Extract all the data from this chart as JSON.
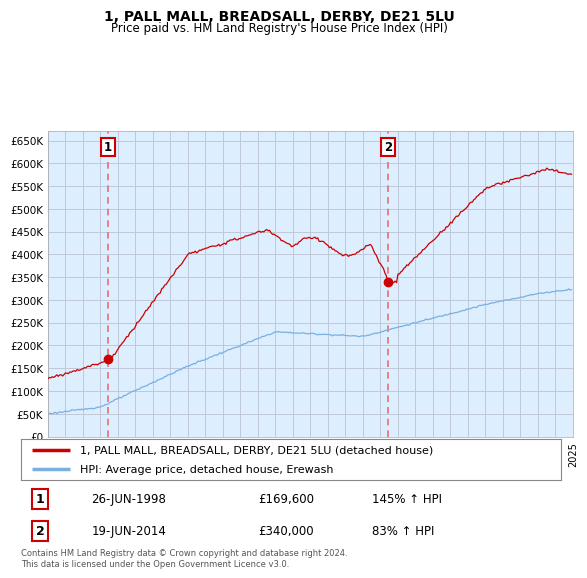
{
  "title": "1, PALL MALL, BREADSALL, DERBY, DE21 5LU",
  "subtitle": "Price paid vs. HM Land Registry's House Price Index (HPI)",
  "ylim": [
    0,
    670000
  ],
  "yticks": [
    0,
    50000,
    100000,
    150000,
    200000,
    250000,
    300000,
    350000,
    400000,
    450000,
    500000,
    550000,
    600000,
    650000
  ],
  "ytick_labels": [
    "£0",
    "£50K",
    "£100K",
    "£150K",
    "£200K",
    "£250K",
    "£300K",
    "£350K",
    "£400K",
    "£450K",
    "£500K",
    "£550K",
    "£600K",
    "£650K"
  ],
  "hpi_color": "#7ab0e0",
  "house_color": "#cc0000",
  "dashed_color": "#e87070",
  "chart_bg": "#ddeeff",
  "sale1_date": "26-JUN-1998",
  "sale1_price": "£169,600",
  "sale1_hpi": "145% ↑ HPI",
  "sale2_date": "19-JUN-2014",
  "sale2_price": "£340,000",
  "sale2_hpi": "83% ↑ HPI",
  "legend_line1": "1, PALL MALL, BREADSALL, DERBY, DE21 5LU (detached house)",
  "legend_line2": "HPI: Average price, detached house, Erewash",
  "footer": "Contains HM Land Registry data © Crown copyright and database right 2024.\nThis data is licensed under the Open Government Licence v3.0.",
  "background_color": "#ffffff",
  "grid_color": "#c0c8d8"
}
